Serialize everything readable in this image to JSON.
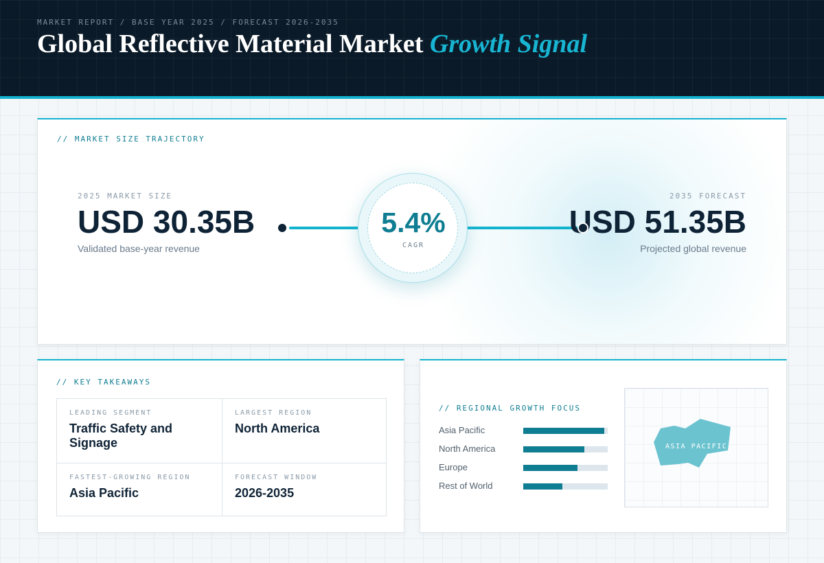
{
  "header": {
    "breadcrumb": "MARKET REPORT / BASE YEAR 2025 / FORECAST 2026-2035",
    "title_main": "Global Reflective Material Market",
    "title_accent": "Growth Signal"
  },
  "trajectory": {
    "section_label": "// MARKET SIZE TRAJECTORY",
    "base": {
      "label": "2025 MARKET SIZE",
      "value": "USD 30.35B",
      "caption": "Validated base-year revenue"
    },
    "forecast": {
      "label": "2035 FORECAST",
      "value": "USD 51.35B",
      "caption": "Projected global revenue"
    },
    "cagr": {
      "value": "5.4%",
      "label": "CAGR"
    }
  },
  "takeaways": {
    "section_label": "// KEY TAKEAWAYS",
    "items": [
      {
        "label": "LEADING SEGMENT",
        "value": "Traffic Safety and Signage"
      },
      {
        "label": "LARGEST REGION",
        "value": "North America"
      },
      {
        "label": "FASTEST-GROWING REGION",
        "value": "Asia Pacific"
      },
      {
        "label": "FORECAST WINDOW",
        "value": "2026-2035"
      }
    ]
  },
  "regional": {
    "section_label": "// REGIONAL GROWTH FOCUS",
    "bars": [
      {
        "label": "Asia Pacific",
        "level": 0.96
      },
      {
        "label": "North America",
        "level": 0.72
      },
      {
        "label": "Europe",
        "level": 0.64
      },
      {
        "label": "Rest of World",
        "level": 0.46
      }
    ],
    "map_label": "ASIA PACIFIC"
  },
  "colors": {
    "header_bg": "#0a1a28",
    "accent": "#12b3cf",
    "teal_dark": "#0f7d92",
    "navy_text": "#0f2336",
    "map_highlight": "#6cc3d0"
  }
}
